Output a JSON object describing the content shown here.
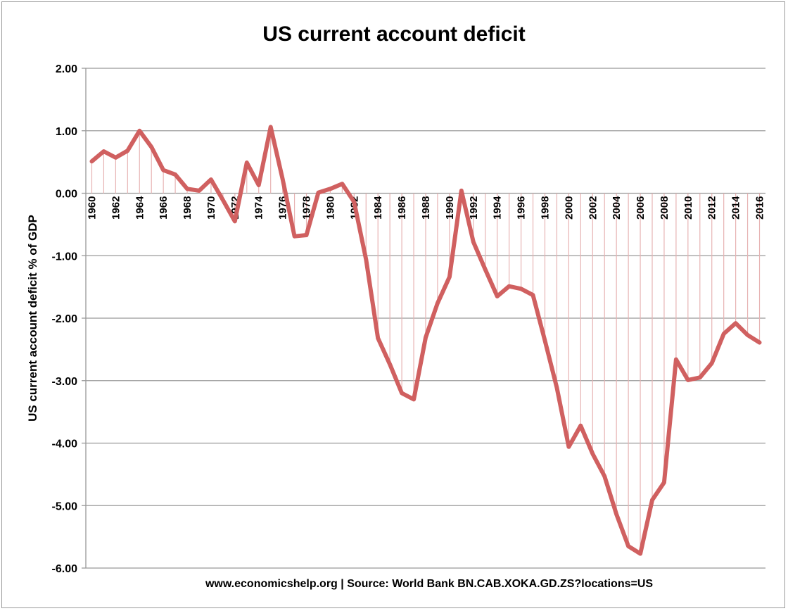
{
  "chart_data": {
    "type": "line",
    "title": "US current account deficit",
    "ylabel": "US current account deficit % of GDP",
    "xlabel": "",
    "source": "www.economicshelp.org | Source:  World Bank BN.CAB.XOKA.GD.ZS?locations=US",
    "ylim": [
      -6,
      2
    ],
    "yticks": [
      2,
      1,
      0,
      -1,
      -2,
      -3,
      -4,
      -5,
      -6
    ],
    "ytick_labels": [
      "2.00",
      "1.00",
      "0.00",
      "-1.00",
      "-2.00",
      "-3.00",
      "-4.00",
      "-5.00",
      "-6.00"
    ],
    "grid": true,
    "legend": "none",
    "drop_lines": true,
    "x": [
      1960,
      1961,
      1962,
      1963,
      1964,
      1965,
      1966,
      1967,
      1968,
      1969,
      1970,
      1971,
      1972,
      1973,
      1974,
      1975,
      1976,
      1977,
      1978,
      1979,
      1980,
      1981,
      1982,
      1983,
      1984,
      1985,
      1986,
      1987,
      1988,
      1989,
      1990,
      1991,
      1992,
      1993,
      1994,
      1995,
      1996,
      1997,
      1998,
      1999,
      2000,
      2001,
      2002,
      2003,
      2004,
      2005,
      2006,
      2007,
      2008,
      2009,
      2010,
      2011,
      2012,
      2013,
      2014,
      2015,
      2016
    ],
    "xtick_labels": [
      "1960",
      "1962",
      "1964",
      "1966",
      "1968",
      "1970",
      "1972",
      "1974",
      "1976",
      "1978",
      "1980",
      "1982",
      "1984",
      "1986",
      "1988",
      "1990",
      "1992",
      "1994",
      "1996",
      "1998",
      "2000",
      "2002",
      "2004",
      "2006",
      "2008",
      "2010",
      "2012",
      "2014",
      "2016"
    ],
    "series": [
      {
        "values": [
          0.51,
          0.67,
          0.57,
          0.68,
          1.0,
          0.74,
          0.37,
          0.3,
          0.07,
          0.04,
          0.22,
          -0.11,
          -0.45,
          0.49,
          0.13,
          1.06,
          0.23,
          -0.69,
          -0.67,
          0.01,
          0.07,
          0.15,
          -0.14,
          -1.06,
          -2.32,
          -2.74,
          -3.2,
          -3.3,
          -2.31,
          -1.76,
          -1.34,
          0.04,
          -0.78,
          -1.22,
          -1.65,
          -1.49,
          -1.53,
          -1.63,
          -2.36,
          -3.11,
          -4.06,
          -3.72,
          -4.17,
          -4.53,
          -5.14,
          -5.65,
          -5.77,
          -4.91,
          -4.63,
          -2.66,
          -2.99,
          -2.95,
          -2.72,
          -2.25,
          -2.08,
          -2.27,
          -2.39
        ],
        "color": "#d06060"
      }
    ],
    "drop_line_color": "#e7b3b3",
    "grid_color": "#999999"
  }
}
